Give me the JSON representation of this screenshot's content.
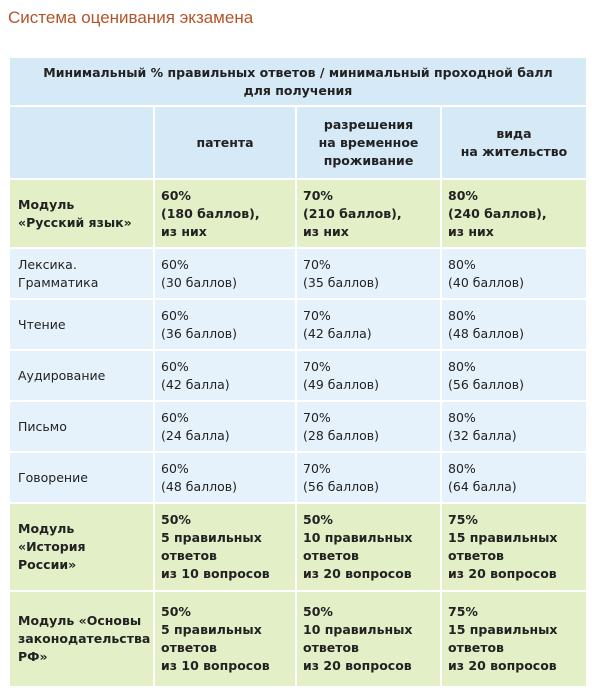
{
  "title": "Система оценивания экзамена",
  "table": {
    "caption": [
      "Минимальный % правильных ответов / минимальный проходной балл",
      "для получения"
    ],
    "columns": [
      [
        "патента"
      ],
      [
        "разрешения",
        "на временное",
        "проживание"
      ],
      [
        "вида",
        "на жительство"
      ]
    ],
    "rows": [
      {
        "label": [
          "Модуль",
          "«Русский язык»"
        ],
        "highlight": true,
        "cells": [
          [
            "60%",
            "(180 баллов),",
            "из них"
          ],
          [
            "70%",
            "(210 баллов),",
            "из них"
          ],
          [
            "80%",
            "(240 баллов),",
            "из них"
          ]
        ]
      },
      {
        "label": [
          "Лексика. Грамматика"
        ],
        "highlight": false,
        "cells": [
          [
            "60%",
            "(30 баллов)"
          ],
          [
            "70%",
            "(35 баллов)"
          ],
          [
            "80%",
            "(40 баллов)"
          ]
        ]
      },
      {
        "label": [
          "Чтение"
        ],
        "highlight": false,
        "cells": [
          [
            "60%",
            "(36 баллов)"
          ],
          [
            "70%",
            "(42 балла)"
          ],
          [
            "80%",
            "(48 баллов)"
          ]
        ]
      },
      {
        "label": [
          "Аудирование"
        ],
        "highlight": false,
        "cells": [
          [
            "60%",
            "(42 балла)"
          ],
          [
            "70%",
            "(49 баллов)"
          ],
          [
            "80%",
            "(56 баллов)"
          ]
        ]
      },
      {
        "label": [
          "Письмо"
        ],
        "highlight": false,
        "cells": [
          [
            "60%",
            "(24 балла)"
          ],
          [
            "70%",
            "(28 баллов)"
          ],
          [
            "80%",
            "(32 балла)"
          ]
        ]
      },
      {
        "label": [
          "Говорение"
        ],
        "highlight": false,
        "cells": [
          [
            "60%",
            "(48 баллов)"
          ],
          [
            "70%",
            "(56 баллов)"
          ],
          [
            "80%",
            "(64 балла)"
          ]
        ]
      },
      {
        "label": [
          "Модуль",
          "«История России»"
        ],
        "highlight": true,
        "cells": [
          [
            "50%",
            "5 правильных",
            "ответов",
            "из 10 вопросов"
          ],
          [
            "50%",
            "10 правильных",
            "ответов",
            "из 20 вопросов"
          ],
          [
            "75%",
            "15 правильных",
            "ответов",
            "из 20 вопросов"
          ]
        ]
      },
      {
        "label": [
          "Модуль «Основы",
          "законодательства",
          "РФ»"
        ],
        "highlight": true,
        "cells": [
          [
            "50%",
            "5 правильных",
            "ответов",
            "из 10 вопросов"
          ],
          [
            "50%",
            "10 правильных",
            "ответов",
            "из 20 вопросов"
          ],
          [
            "75%",
            "15 правильных",
            "ответов",
            "из 20 вопросов"
          ]
        ]
      }
    ]
  }
}
